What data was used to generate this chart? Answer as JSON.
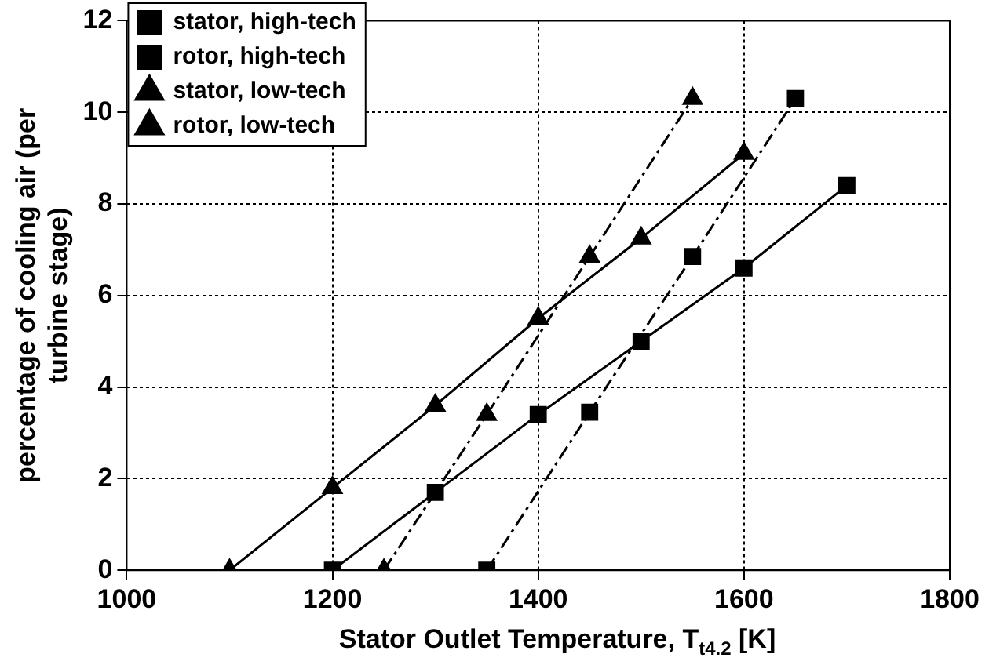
{
  "chart_data": {
    "type": "line",
    "xlabel": "Stator Outlet Temperature, T$_{t4.2}$ [K]",
    "ylabel": "percentage of cooling air (per turbine stage)",
    "xlim": [
      1000,
      1800
    ],
    "xticks": [
      1000,
      1200,
      1400,
      1600,
      1800
    ],
    "ylim": [
      0,
      12
    ],
    "yticks": [
      0,
      2,
      4,
      6,
      8,
      10,
      12
    ],
    "grid": true,
    "legend": "top left",
    "series": [
      {
        "name": "stator, high-tech",
        "color": "#000000",
        "marker": "square",
        "line_style": "solid",
        "x": [
          1200,
          1300,
          1400,
          1500,
          1600,
          1700
        ],
        "values": [
          0,
          1.7,
          3.4,
          5.0,
          6.6,
          8.4
        ]
      },
      {
        "name": "rotor, high-tech",
        "color": "#000000",
        "marker": "square",
        "line_style": "dashed",
        "x": [
          1350,
          1450,
          1550,
          1650
        ],
        "values": [
          0,
          3.45,
          6.85,
          10.3
        ]
      },
      {
        "name": "stator, low-tech",
        "color": "#000000",
        "marker": "triangle",
        "line_style": "solid",
        "x": [
          1100,
          1200,
          1300,
          1400,
          1500,
          1600
        ],
        "values": [
          0,
          1.8,
          3.6,
          5.5,
          7.25,
          9.1
        ]
      },
      {
        "name": "rotor, low-tech",
        "color": "#000000",
        "marker": "triangle",
        "line_style": "dashed",
        "x": [
          1250,
          1350,
          1450,
          1550
        ],
        "values": [
          0,
          3.4,
          6.85,
          10.3
        ]
      }
    ]
  }
}
